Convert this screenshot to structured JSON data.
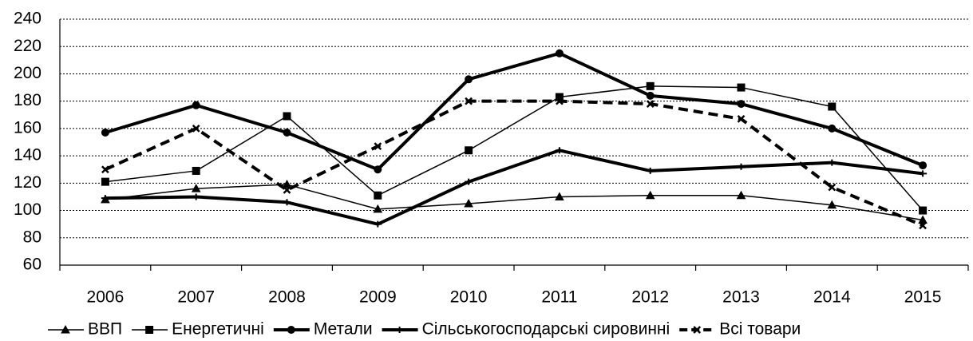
{
  "chart_data": {
    "type": "line",
    "categories": [
      "2006",
      "2007",
      "2008",
      "2009",
      "2010",
      "2011",
      "2012",
      "2013",
      "2014",
      "2015"
    ],
    "series": [
      {
        "name": "ВВП",
        "color": "#000000",
        "width": 1.5,
        "marker": "triangle",
        "dash": false,
        "values": [
          108,
          116,
          119,
          101,
          105,
          110,
          111,
          111,
          104,
          93
        ]
      },
      {
        "name": "Енергетичні",
        "color": "#000000",
        "width": 1.5,
        "marker": "square",
        "dash": false,
        "values": [
          121,
          129,
          169,
          111,
          144,
          183,
          191,
          190,
          176,
          100
        ]
      },
      {
        "name": "Метали",
        "color": "#000000",
        "width": 4,
        "marker": "circle",
        "dash": false,
        "values": [
          157,
          177,
          157,
          130,
          196,
          215,
          184,
          178,
          160,
          133
        ]
      },
      {
        "name": "Сільськогосподарські сировинні",
        "color": "#000000",
        "width": 4,
        "marker": "plus",
        "dash": false,
        "values": [
          109,
          110,
          106,
          90,
          121,
          144,
          129,
          132,
          135,
          127
        ]
      },
      {
        "name": "Всі товари",
        "color": "#000000",
        "width": 4,
        "marker": "cross",
        "dash": true,
        "values": [
          130,
          160,
          115,
          147,
          180,
          180,
          178,
          167,
          117,
          89
        ]
      }
    ],
    "ylim": [
      60,
      240
    ],
    "yticks": [
      60,
      80,
      100,
      120,
      140,
      160,
      180,
      200,
      220,
      240
    ],
    "grid": true,
    "legend": "bottom"
  }
}
